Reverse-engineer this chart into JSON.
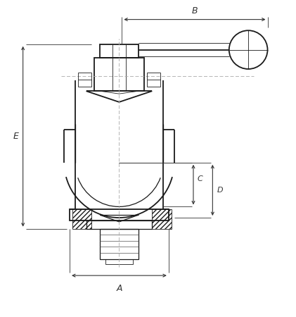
{
  "bg_color": "#ffffff",
  "line_color": "#1a1a1a",
  "dim_color": "#333333",
  "fig_width": 4.21,
  "fig_height": 4.5,
  "dpi": 100,
  "labels": {
    "A": "A",
    "B": "B",
    "C": "C",
    "D": "D",
    "E": "E"
  }
}
